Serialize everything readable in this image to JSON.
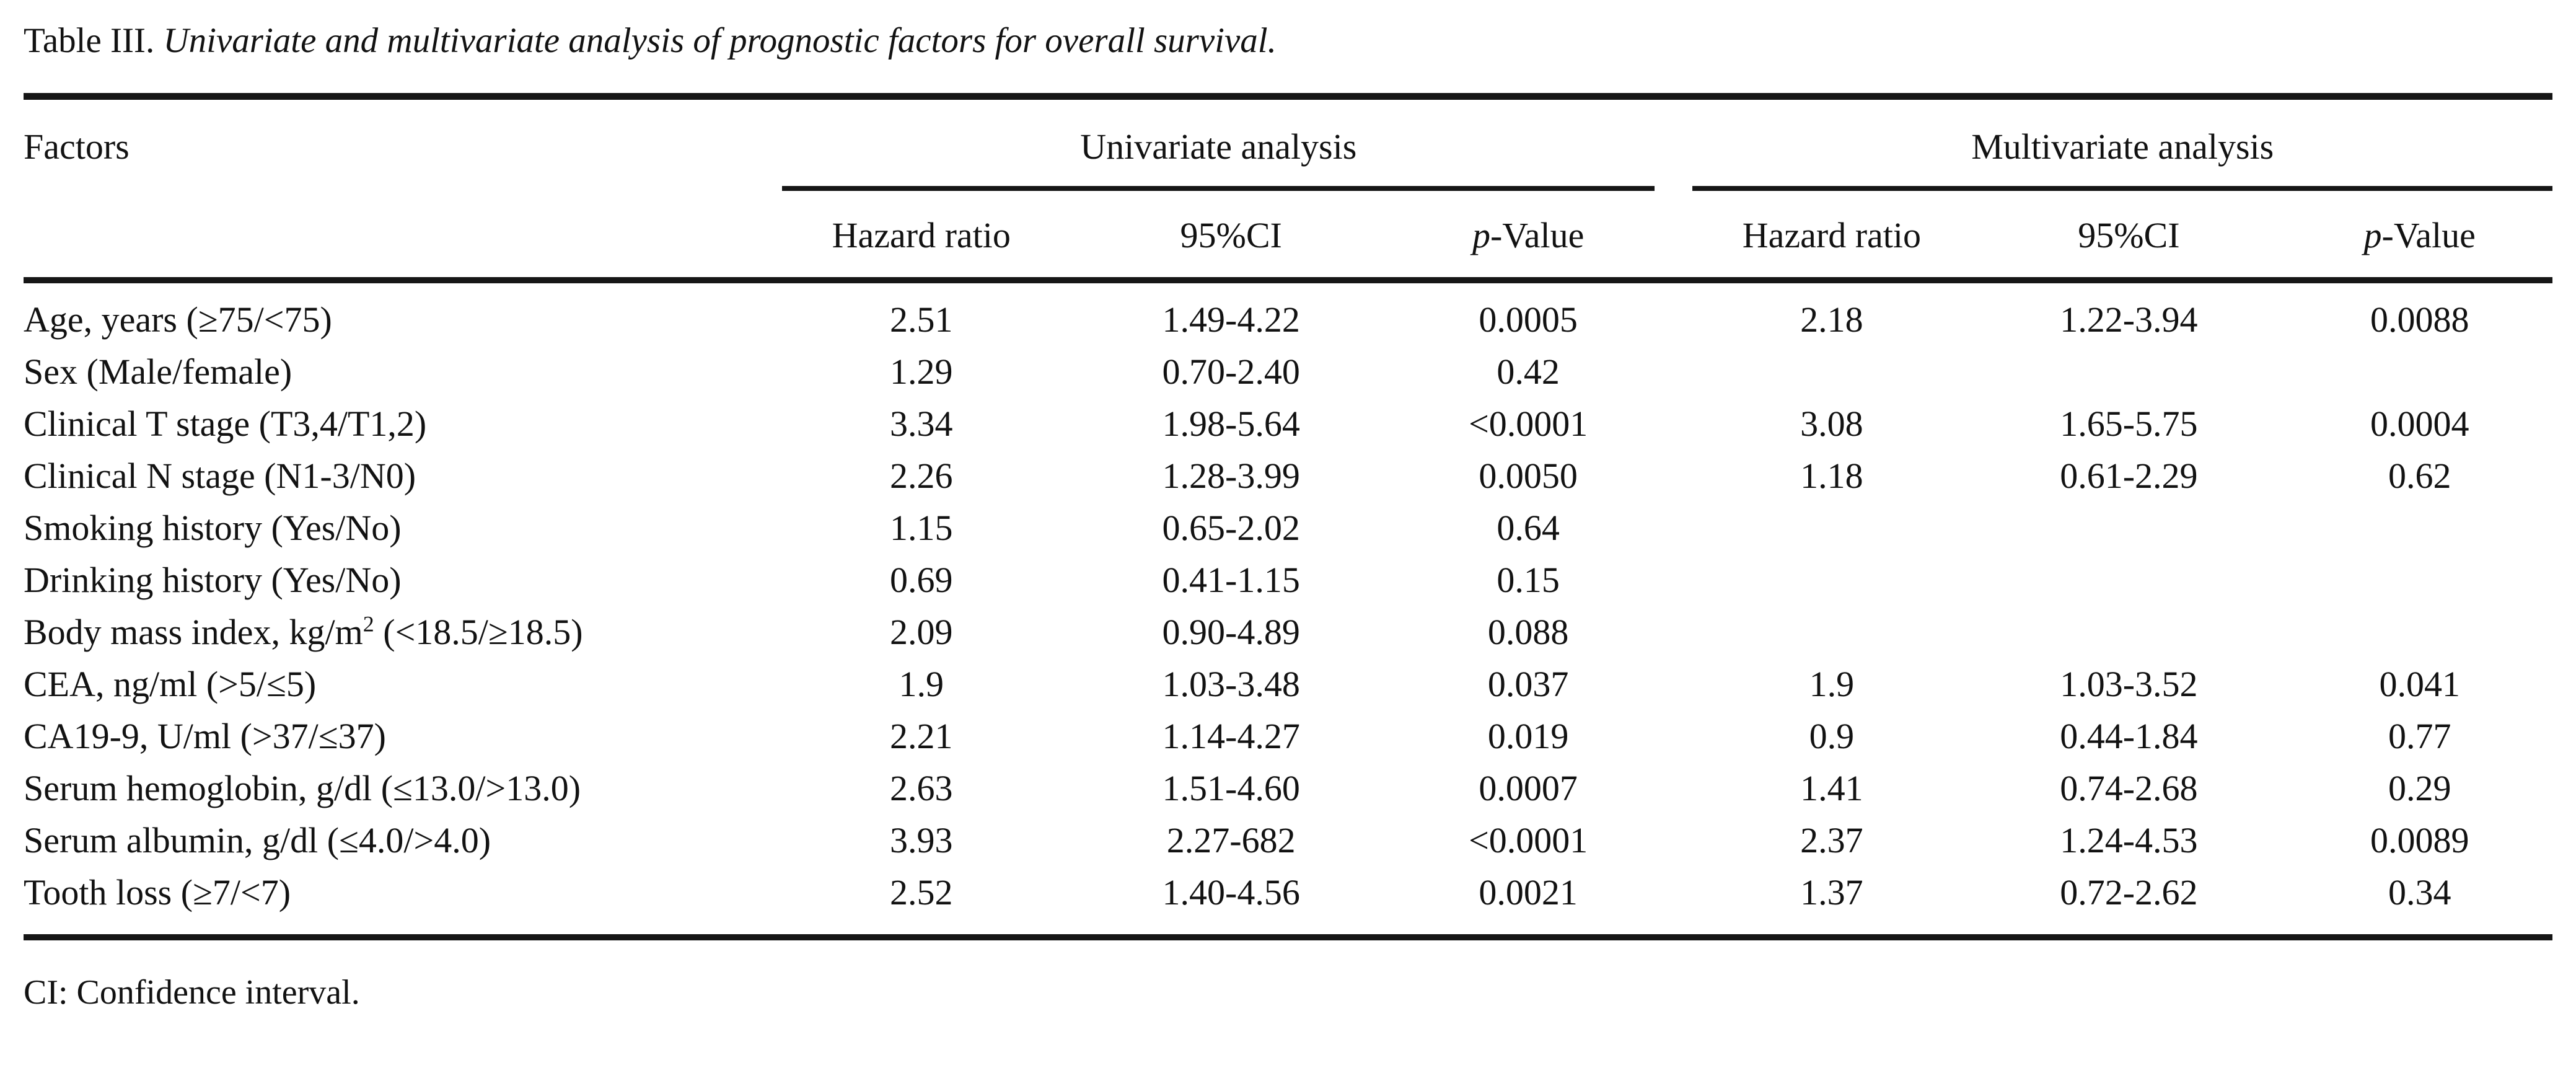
{
  "page": {
    "title_prefix": "Table III.",
    "title_italic": " Univariate and multivariate analysis of prognostic factors for overall survival.",
    "footnote": "CI: Confidence interval."
  },
  "table": {
    "factors_header": "Factors",
    "group_univariate": "Univariate analysis",
    "group_multivariate": "Multivariate analysis",
    "sub": {
      "hazard": "Hazard ratio",
      "ci": "95%CI",
      "p_italic": "p",
      "p_rest": "-Value"
    },
    "rows": [
      {
        "factor_pre": "Age, years (≥75/<75)",
        "factor_sup": "",
        "factor_post": "",
        "u_hr": "2.51",
        "u_ci": "1.49-4.22",
        "u_p": "0.0005",
        "m_hr": "2.18",
        "m_ci": "1.22-3.94",
        "m_p": "0.0088"
      },
      {
        "factor_pre": "Sex (Male/female)",
        "factor_sup": "",
        "factor_post": "",
        "u_hr": "1.29",
        "u_ci": "0.70-2.40",
        "u_p": "0.42",
        "m_hr": "",
        "m_ci": "",
        "m_p": ""
      },
      {
        "factor_pre": "Clinical T stage (T3,4/T1,2)",
        "factor_sup": "",
        "factor_post": "",
        "u_hr": "3.34",
        "u_ci": "1.98-5.64",
        "u_p": "<0.0001",
        "m_hr": "3.08",
        "m_ci": "1.65-5.75",
        "m_p": "0.0004"
      },
      {
        "factor_pre": "Clinical N stage (N1-3/N0)",
        "factor_sup": "",
        "factor_post": "",
        "u_hr": "2.26",
        "u_ci": "1.28-3.99",
        "u_p": "0.0050",
        "m_hr": "1.18",
        "m_ci": "0.61-2.29",
        "m_p": "0.62"
      },
      {
        "factor_pre": "Smoking history (Yes/No)",
        "factor_sup": "",
        "factor_post": "",
        "u_hr": "1.15",
        "u_ci": "0.65-2.02",
        "u_p": "0.64",
        "m_hr": "",
        "m_ci": "",
        "m_p": ""
      },
      {
        "factor_pre": "Drinking history (Yes/No)",
        "factor_sup": "",
        "factor_post": "",
        "u_hr": "0.69",
        "u_ci": "0.41-1.15",
        "u_p": "0.15",
        "m_hr": "",
        "m_ci": "",
        "m_p": ""
      },
      {
        "factor_pre": "Body mass index, kg/m",
        "factor_sup": "2",
        "factor_post": " (<18.5/≥18.5)",
        "u_hr": "2.09",
        "u_ci": "0.90-4.89",
        "u_p": "0.088",
        "m_hr": "",
        "m_ci": "",
        "m_p": ""
      },
      {
        "factor_pre": "CEA, ng/ml (>5/≤5)",
        "factor_sup": "",
        "factor_post": "",
        "u_hr": "1.9",
        "u_ci": "1.03-3.48",
        "u_p": "0.037",
        "m_hr": "1.9",
        "m_ci": "1.03-3.52",
        "m_p": "0.041"
      },
      {
        "factor_pre": "CA19-9, U/ml (>37/≤37)",
        "factor_sup": "",
        "factor_post": "",
        "u_hr": "2.21",
        "u_ci": "1.14-4.27",
        "u_p": "0.019",
        "m_hr": "0.9",
        "m_ci": "0.44-1.84",
        "m_p": "0.77"
      },
      {
        "factor_pre": "Serum hemoglobin, g/dl (≤13.0/>13.0)",
        "factor_sup": "",
        "factor_post": "",
        "u_hr": "2.63",
        "u_ci": "1.51-4.60",
        "u_p": "0.0007",
        "m_hr": "1.41",
        "m_ci": "0.74-2.68",
        "m_p": "0.29"
      },
      {
        "factor_pre": "Serum albumin, g/dl (≤4.0/>4.0)",
        "factor_sup": "",
        "factor_post": "",
        "u_hr": "3.93",
        "u_ci": "2.27-682",
        "u_p": "<0.0001",
        "m_hr": "2.37",
        "m_ci": "1.24-4.53",
        "m_p": "0.0089"
      },
      {
        "factor_pre": "Tooth loss (≥7/<7)",
        "factor_sup": "",
        "factor_post": "",
        "u_hr": "2.52",
        "u_ci": "1.40-4.56",
        "u_p": "0.0021",
        "m_hr": "1.37",
        "m_ci": "0.72-2.62",
        "m_p": "0.34"
      }
    ]
  }
}
